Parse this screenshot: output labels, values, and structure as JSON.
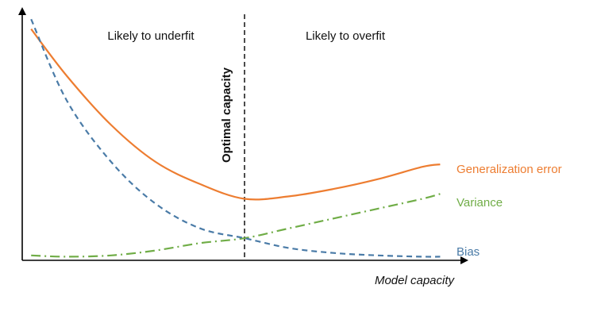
{
  "chart_data": {
    "type": "line",
    "xlabel": "Model capacity",
    "ylabel": "",
    "xlim": [
      0,
      10
    ],
    "ylim": [
      0,
      10
    ],
    "grid": false,
    "optimal_capacity": {
      "x": 5,
      "label": "Optimal capacity"
    },
    "regions": [
      {
        "label": "Likely to underfit"
      },
      {
        "label": "Likely to overfit"
      }
    ],
    "series": [
      {
        "name": "Generalization error",
        "color": "#ed7d31",
        "style": "solid",
        "x": [
          0.2,
          1,
          2,
          3,
          4,
          5,
          6,
          7,
          8,
          9,
          9.4
        ],
        "y": [
          9.4,
          7.5,
          5.5,
          4.0,
          3.1,
          2.5,
          2.6,
          2.9,
          3.3,
          3.8,
          3.9
        ]
      },
      {
        "name": "Variance",
        "color": "#70ad47",
        "style": "dashdot",
        "x": [
          0.2,
          1,
          2,
          3,
          4,
          5,
          6,
          7,
          8,
          9,
          9.4
        ],
        "y": [
          0.2,
          0.15,
          0.2,
          0.4,
          0.7,
          0.9,
          1.3,
          1.7,
          2.1,
          2.5,
          2.7
        ]
      },
      {
        "name": "Bias",
        "color": "#4a7ba7",
        "style": "dashed",
        "x": [
          0.2,
          1,
          2,
          3,
          4,
          5,
          6,
          7,
          8,
          9,
          9.4
        ],
        "y": [
          9.8,
          6.5,
          4.0,
          2.3,
          1.3,
          0.9,
          0.5,
          0.3,
          0.2,
          0.15,
          0.15
        ]
      }
    ]
  }
}
